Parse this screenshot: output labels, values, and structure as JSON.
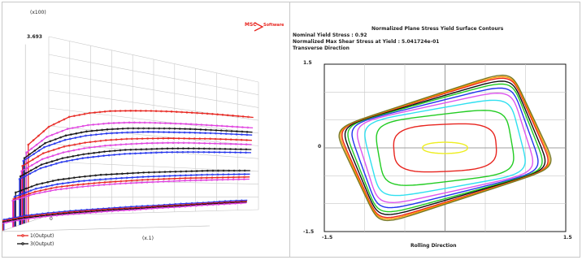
{
  "brand": {
    "logo_text": "MSC",
    "logo_suffix": "Software"
  },
  "colors": {
    "red": "#e8251f",
    "magenta": "#e040e0",
    "black": "#111111",
    "blue": "#2233ee",
    "panel_border": "#c8c8c8",
    "grid": "#c8c8c8",
    "yellow": "#eeee20",
    "green": "#22cc22",
    "cyan": "#30e0f0",
    "violet": "#dd55ee",
    "orange": "#ff9900",
    "olive": "#777722"
  },
  "chart_data": [
    {
      "type": "line",
      "title": "",
      "y_multiplier": "(x100)",
      "y_max_label": "3.693",
      "y_min_label": "0",
      "xlabel": "(x.1)",
      "grid": true,
      "legend": [
        {
          "label": "1(Output)",
          "color": "#e8251f"
        },
        {
          "label": "3(Output)",
          "color": "#111111"
        }
      ],
      "series": [
        {
          "color": "#e8251f",
          "start_depth": 2.1,
          "y": [
            1.6,
            2.0,
            2.25,
            2.38,
            2.47,
            2.53,
            2.58,
            2.62,
            2.65,
            2.68,
            2.7,
            2.72
          ]
        },
        {
          "color": "#e040e0",
          "start_depth": 2.3,
          "y": [
            1.45,
            1.8,
            2.0,
            2.12,
            2.2,
            2.26,
            2.3,
            2.33,
            2.36,
            2.38,
            2.4,
            2.42
          ]
        },
        {
          "color": "#111111",
          "start_depth": 2.5,
          "y": [
            1.35,
            1.68,
            1.87,
            1.99,
            2.07,
            2.13,
            2.17,
            2.21,
            2.24,
            2.26,
            2.28,
            2.3
          ]
        },
        {
          "color": "#2233ee",
          "start_depth": 2.6,
          "y": [
            1.3,
            1.6,
            1.78,
            1.9,
            1.98,
            2.04,
            2.09,
            2.12,
            2.15,
            2.18,
            2.2,
            2.22
          ]
        },
        {
          "color": "#e8251f",
          "start_depth": 2.7,
          "y": [
            1.2,
            1.48,
            1.64,
            1.75,
            1.83,
            1.89,
            1.93,
            1.97,
            2.0,
            2.03,
            2.05,
            2.07
          ]
        },
        {
          "color": "#e040e0",
          "start_depth": 2.8,
          "y": [
            1.1,
            1.36,
            1.52,
            1.63,
            1.71,
            1.77,
            1.82,
            1.86,
            1.89,
            1.91,
            1.93,
            1.95
          ]
        },
        {
          "color": "#111111",
          "start_depth": 2.9,
          "y": [
            1.0,
            1.25,
            1.4,
            1.5,
            1.58,
            1.64,
            1.68,
            1.72,
            1.75,
            1.77,
            1.79,
            1.81
          ]
        },
        {
          "color": "#2233ee",
          "start_depth": 3.0,
          "y": [
            0.95,
            1.18,
            1.32,
            1.42,
            1.49,
            1.55,
            1.59,
            1.63,
            1.66,
            1.68,
            1.7,
            1.72
          ]
        },
        {
          "color": "#111111",
          "start_depth": 3.4,
          "y": [
            0.7,
            0.86,
            0.96,
            1.02,
            1.07,
            1.1,
            1.13,
            1.15,
            1.17,
            1.19,
            1.2,
            1.21
          ]
        },
        {
          "color": "#2233ee",
          "start_depth": 3.5,
          "y": [
            0.62,
            0.78,
            0.87,
            0.93,
            0.97,
            1.0,
            1.03,
            1.05,
            1.07,
            1.09,
            1.1,
            1.11
          ]
        },
        {
          "color": "#e8251f",
          "start_depth": 3.6,
          "y": [
            0.58,
            0.72,
            0.81,
            0.86,
            0.9,
            0.93,
            0.96,
            0.98,
            1.0,
            1.01,
            1.02,
            1.03
          ]
        },
        {
          "color": "#e040e0",
          "start_depth": 3.7,
          "y": [
            0.55,
            0.68,
            0.76,
            0.81,
            0.85,
            0.88,
            0.9,
            0.92,
            0.94,
            0.95,
            0.96,
            0.97
          ]
        },
        {
          "color": "#2233ee",
          "start_depth": 4.6,
          "y": [
            0.22,
            0.28,
            0.31,
            0.33,
            0.34,
            0.35,
            0.36,
            0.36,
            0.37,
            0.37,
            0.38,
            0.38
          ]
        },
        {
          "color": "#e8251f",
          "start_depth": 4.7,
          "y": [
            0.2,
            0.26,
            0.29,
            0.31,
            0.32,
            0.33,
            0.33,
            0.34,
            0.34,
            0.35,
            0.35,
            0.35
          ]
        },
        {
          "color": "#111111",
          "start_depth": 4.8,
          "y": [
            0.18,
            0.24,
            0.27,
            0.29,
            0.3,
            0.31,
            0.31,
            0.32,
            0.32,
            0.33,
            0.33,
            0.33
          ]
        },
        {
          "color": "#e040e0",
          "start_depth": 4.9,
          "y": [
            0.16,
            0.22,
            0.25,
            0.27,
            0.28,
            0.29,
            0.29,
            0.3,
            0.3,
            0.31,
            0.31,
            0.31
          ]
        }
      ]
    },
    {
      "type": "line",
      "title": "Normalized Plane Stress Yield Surface Contours",
      "info": [
        "Nominal Yield Stress : 0.92",
        "Normalized Max Shear Stress at Yield : 5.041724e-01",
        "Transverse Direction"
      ],
      "xlabel": "Rolling Direction",
      "xlim": [
        -1.5,
        1.5
      ],
      "ylim": [
        -1.5,
        1.5
      ],
      "x_tick_labels": [
        "-1.5",
        "1.5"
      ],
      "y_tick_labels": [
        "1.5",
        "0",
        "-1.5"
      ],
      "grid": true,
      "contours": [
        {
          "color": "#eeee20",
          "level": 0.25
        },
        {
          "color": "#e8251f",
          "level": 0.55
        },
        {
          "color": "#22cc22",
          "level": 0.72
        },
        {
          "color": "#30e0f0",
          "level": 0.82
        },
        {
          "color": "#dd55ee",
          "level": 0.88
        },
        {
          "color": "#2233ee",
          "level": 0.92
        },
        {
          "color": "#22cc22",
          "level": 0.95
        },
        {
          "color": "#111111",
          "level": 0.97
        },
        {
          "color": "#e8251f",
          "level": 0.99
        },
        {
          "color": "#ff9900",
          "level": 1.0
        },
        {
          "color": "#777722",
          "level": 1.01
        }
      ]
    }
  ]
}
